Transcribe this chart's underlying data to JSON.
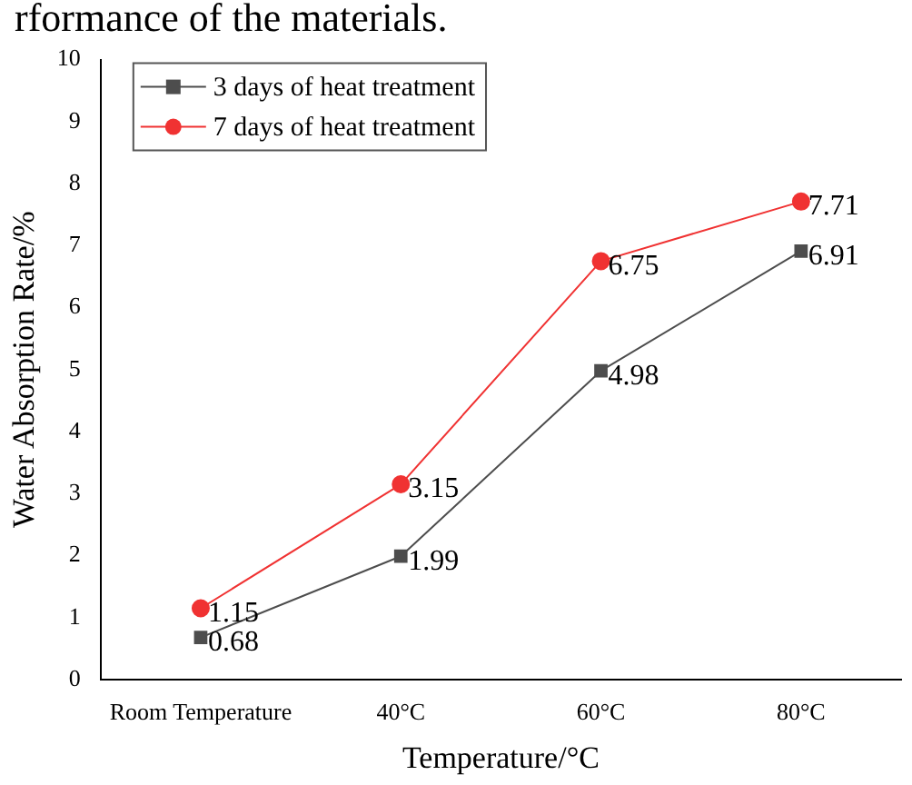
{
  "chart_data": {
    "type": "line",
    "annotations": [
      "rformance of the materials."
    ],
    "xlabel": "Temperature/°C",
    "ylabel": "Water Absorption Rate/%",
    "categories": [
      "Room Temperature",
      "40°C",
      "60°C",
      "80°C"
    ],
    "series": [
      {
        "name": "3 days of heat treatment",
        "color": "#4d4d4d",
        "marker": "square",
        "values": [
          0.68,
          1.99,
          4.98,
          6.91
        ]
      },
      {
        "name": "7 days of heat treatment",
        "color": "#f03232",
        "marker": "circle",
        "values": [
          1.15,
          3.15,
          6.75,
          7.71
        ]
      }
    ],
    "ylim": [
      0,
      10
    ],
    "yticks": [
      0,
      1,
      2,
      3,
      4,
      5,
      6,
      7,
      8,
      9,
      10
    ],
    "grid": false,
    "legend": "top left",
    "data_labels": true,
    "line_style": "solid"
  }
}
